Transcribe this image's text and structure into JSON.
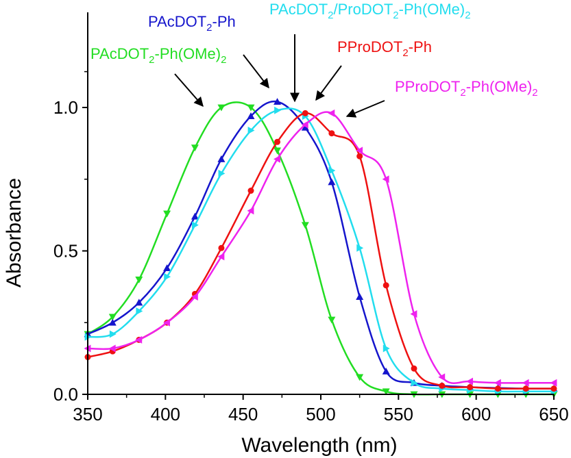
{
  "chart_data": {
    "type": "line",
    "xlabel": "Wavelength (nm)",
    "ylabel": "Absorbance",
    "xlim": [
      350,
      650
    ],
    "ylim": [
      0,
      1.2
    ],
    "xticks": [
      350,
      400,
      450,
      500,
      550,
      600,
      650
    ],
    "xtick_labels": [
      "350",
      "400",
      "450",
      "500",
      "550",
      "600",
      "650"
    ],
    "yticks": [
      0,
      0.5,
      1.0
    ],
    "ytick_labels": [
      "0.0",
      "0.5",
      "1.0"
    ],
    "grid": false,
    "legend": "none",
    "series": [
      {
        "name": "PAcDOT2-Ph(OMe)2",
        "color": "#22dd22",
        "marker": "triangle-down",
        "x": [
          350,
          366,
          383,
          401,
          419,
          436,
          455,
          472,
          490,
          507,
          525,
          542,
          560,
          578,
          596,
          614,
          632,
          650
        ],
        "y": [
          0.21,
          0.27,
          0.4,
          0.63,
          0.86,
          1.0,
          1.0,
          0.85,
          0.59,
          0.26,
          0.06,
          0.01,
          0.0,
          0.0,
          0.0,
          0.0,
          0.0,
          0.0
        ]
      },
      {
        "name": "PAcDOT2-Ph",
        "color": "#1515cc",
        "marker": "triangle-up",
        "x": [
          350,
          366,
          383,
          401,
          419,
          436,
          455,
          472,
          490,
          507,
          525,
          542,
          560,
          578,
          596,
          614,
          632,
          650
        ],
        "y": [
          0.21,
          0.25,
          0.32,
          0.44,
          0.62,
          0.82,
          0.97,
          1.02,
          0.93,
          0.74,
          0.34,
          0.08,
          0.04,
          0.03,
          0.025,
          0.022,
          0.02,
          0.02
        ]
      },
      {
        "name": "PAcDOT2/ProDOT2-Ph(OMe)2",
        "color": "#22ddee",
        "marker": "triangle-right",
        "x": [
          350,
          366,
          383,
          401,
          419,
          436,
          455,
          472,
          490,
          507,
          525,
          542,
          560,
          578,
          596,
          614,
          632,
          650
        ],
        "y": [
          0.2,
          0.21,
          0.29,
          0.41,
          0.59,
          0.77,
          0.92,
          0.99,
          0.97,
          0.78,
          0.51,
          0.16,
          0.04,
          0.02,
          0.015,
          0.01,
          0.01,
          0.01
        ]
      },
      {
        "name": "PProDOT2-Ph",
        "color": "#ee1111",
        "marker": "circle",
        "x": [
          350,
          366,
          383,
          401,
          419,
          436,
          455,
          472,
          490,
          507,
          525,
          542,
          560,
          578,
          596,
          614,
          632,
          650
        ],
        "y": [
          0.13,
          0.15,
          0.19,
          0.25,
          0.35,
          0.51,
          0.71,
          0.88,
          0.98,
          0.91,
          0.83,
          0.38,
          0.09,
          0.03,
          0.025,
          0.02,
          0.02,
          0.02
        ]
      },
      {
        "name": "PProDOT2-Ph(OMe)2",
        "color": "#ee22ee",
        "marker": "triangle-left",
        "x": [
          350,
          366,
          383,
          401,
          419,
          436,
          455,
          472,
          490,
          507,
          525,
          542,
          560,
          578,
          596,
          614,
          632,
          650
        ],
        "y": [
          0.16,
          0.16,
          0.19,
          0.25,
          0.34,
          0.48,
          0.64,
          0.82,
          0.94,
          0.98,
          0.85,
          0.75,
          0.28,
          0.06,
          0.045,
          0.04,
          0.04,
          0.04
        ]
      }
    ],
    "annotations": [
      {
        "prefix": "PAcDOT",
        "sub1": "2",
        "middle": "-Ph(OMe)",
        "sub2": "2",
        "rest": "",
        "sub3": "",
        "tail": "",
        "color": "#22dd22"
      },
      {
        "prefix": "PAcDOT",
        "sub1": "2",
        "middle": "-Ph",
        "sub2": "",
        "rest": "",
        "sub3": "",
        "tail": "",
        "color": "#1515cc"
      },
      {
        "prefix": "PAcDOT",
        "sub1": "2",
        "middle": "/ProDOT",
        "sub2": "2",
        "rest": "-Ph(OMe)",
        "sub3": "2",
        "tail": "",
        "color": "#22ddee"
      },
      {
        "prefix": "PProDOT",
        "sub1": "2",
        "middle": "-Ph",
        "sub2": "",
        "rest": "",
        "sub3": "",
        "tail": "",
        "color": "#ee1111"
      },
      {
        "prefix": "PProDOT",
        "sub1": "2",
        "middle": "-Ph(OMe)",
        "sub2": "2",
        "rest": "",
        "sub3": "",
        "tail": "",
        "color": "#ee22ee"
      }
    ]
  }
}
